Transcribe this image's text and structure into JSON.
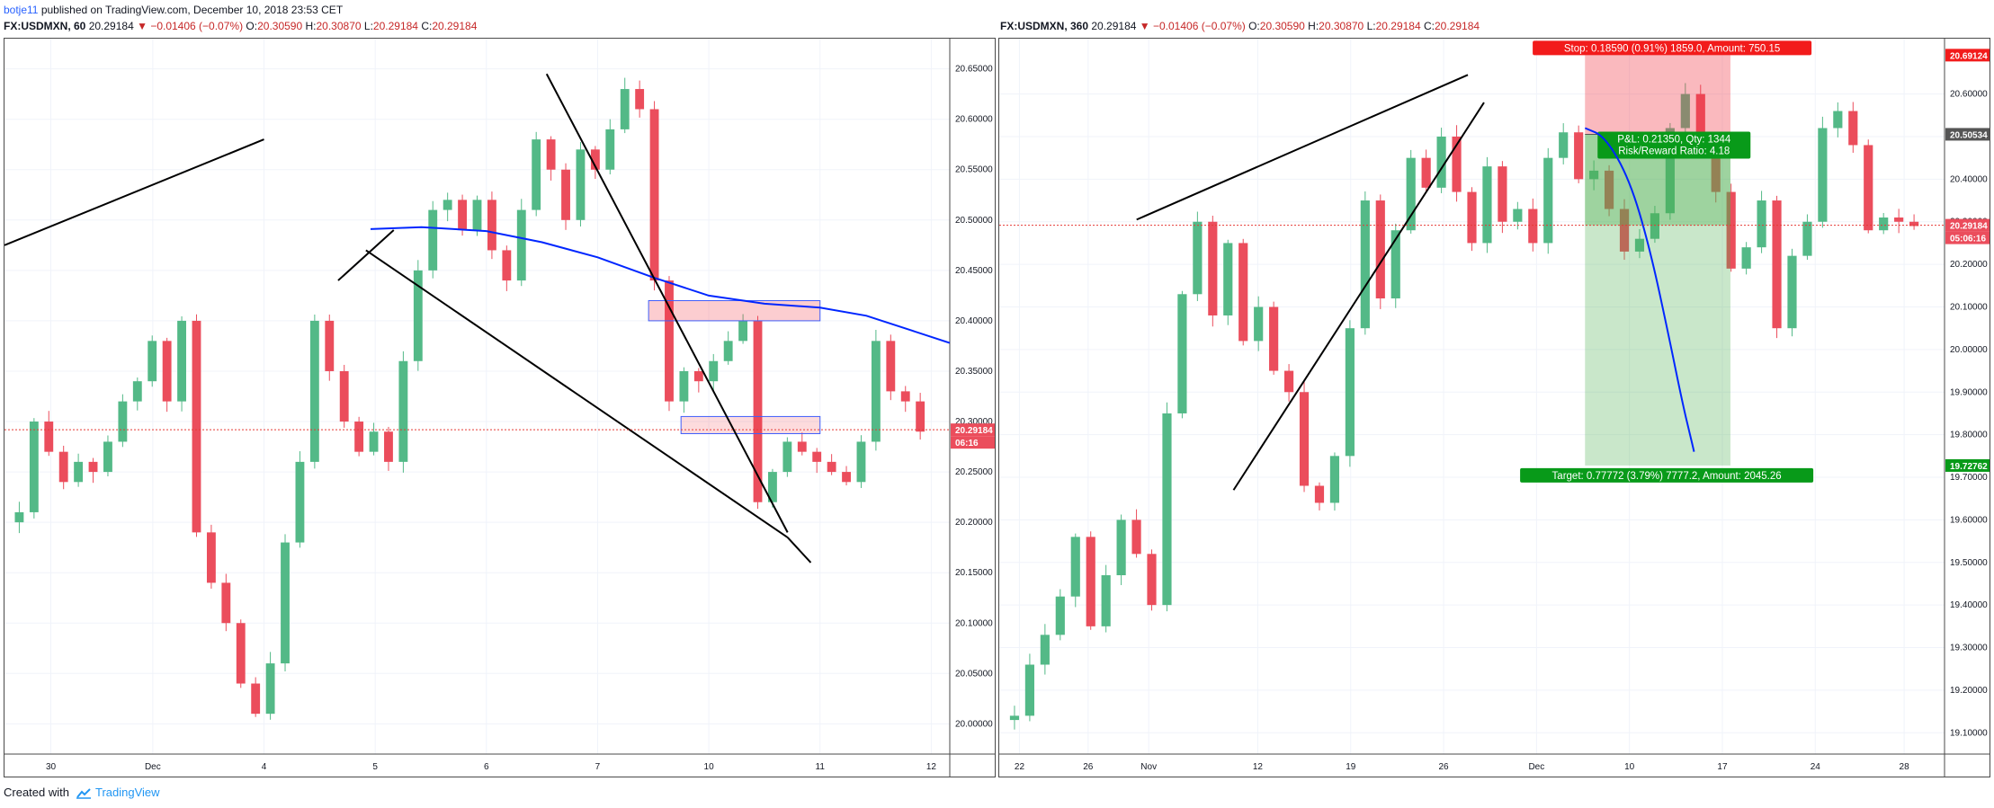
{
  "header": {
    "author": "botje11",
    "published": "published on TradingView.com, December 10, 2018 23:53 CET"
  },
  "charts_meta": [
    {
      "symbol": "FX:USDMXN, 60",
      "last": "20.29184",
      "change": "▼ −0.01406 (−0.07%)",
      "o": "20.30590",
      "h": "20.30870",
      "l": "20.29184",
      "c": "20.29184"
    },
    {
      "symbol": "FX:USDMXN, 360",
      "last": "20.29184",
      "change": "▼ −0.01406 (−0.07%)",
      "o": "20.30590",
      "h": "20.30870",
      "l": "20.29184",
      "c": "20.29184"
    }
  ],
  "labels": {
    "o": "O:",
    "h": "H:",
    "l": "L:",
    "c": "C:"
  },
  "footer": {
    "created_with": "Created with",
    "brand": "TradingView"
  },
  "colors": {
    "up": "#53b987",
    "down": "#eb4d5c",
    "ma": "#0026ff",
    "price_line": "#e53935",
    "target": "#089a19",
    "stop": "#f21b1b"
  },
  "chart_data": [
    {
      "type": "candlestick",
      "symbol": "FX:USDMXN",
      "interval": "60",
      "ylim": [
        19.97,
        20.68
      ],
      "y_ticks": [
        "20.00000",
        "20.05000",
        "20.10000",
        "20.15000",
        "20.20000",
        "20.25000",
        "20.30000",
        "20.35000",
        "20.40000",
        "20.45000",
        "20.50000",
        "20.55000",
        "20.60000",
        "20.65000"
      ],
      "x_ticks": [
        "30",
        "Dec",
        "4",
        "5",
        "6",
        "7",
        "10",
        "11",
        "12"
      ],
      "x_tick_pos": [
        0.5,
        1.6,
        2.8,
        4.0,
        5.2,
        6.4,
        7.6,
        8.8,
        10.0
      ],
      "x_range": [
        0,
        10.2
      ],
      "price_tag": "20.29184",
      "countdown": "06:16",
      "closes": [
        20.21,
        20.3,
        20.27,
        20.24,
        20.26,
        20.25,
        20.28,
        20.32,
        20.34,
        20.38,
        20.32,
        20.4,
        20.19,
        20.14,
        20.1,
        20.04,
        20.01,
        20.06,
        20.18,
        20.26,
        20.4,
        20.35,
        20.3,
        20.27,
        20.29,
        20.26,
        20.36,
        20.45,
        20.51,
        20.52,
        20.49,
        20.52,
        20.47,
        20.44,
        20.51,
        20.58,
        20.55,
        20.5,
        20.57,
        20.55,
        20.59,
        20.63,
        20.61,
        20.44,
        20.32,
        20.35,
        20.34,
        20.36,
        20.38,
        20.4,
        20.22,
        20.25,
        20.28,
        20.27,
        20.26,
        20.25,
        20.24,
        20.28,
        20.38,
        20.33,
        20.32,
        20.29
      ],
      "moving_average": [
        [
          3.95,
          20.491
        ],
        [
          4.5,
          20.493
        ],
        [
          5.2,
          20.489
        ],
        [
          5.8,
          20.478
        ],
        [
          6.4,
          20.463
        ],
        [
          7.0,
          20.443
        ],
        [
          7.6,
          20.425
        ],
        [
          8.2,
          20.417
        ],
        [
          8.8,
          20.413
        ],
        [
          9.3,
          20.405
        ],
        [
          9.8,
          20.39
        ],
        [
          10.2,
          20.378
        ]
      ],
      "zones": [
        {
          "x": [
            6.95,
            8.8
          ],
          "y": [
            20.4,
            20.42
          ],
          "color": "red"
        },
        {
          "x": [
            7.3,
            8.8
          ],
          "y": [
            20.288,
            20.305
          ],
          "color": "blue"
        }
      ],
      "trendlines": [
        [
          [
            0,
            20.475
          ],
          [
            2.8,
            20.58
          ]
        ],
        [
          [
            3.6,
            20.44
          ],
          [
            4.2,
            20.49
          ]
        ],
        [
          [
            3.9,
            20.47
          ],
          [
            8.45,
            20.185
          ]
        ],
        [
          [
            8.45,
            20.185
          ],
          [
            8.7,
            20.16
          ]
        ],
        [
          [
            5.85,
            20.645
          ],
          [
            8.45,
            20.19
          ]
        ]
      ]
    },
    {
      "type": "candlestick",
      "symbol": "FX:USDMXN",
      "interval": "360",
      "ylim": [
        19.05,
        20.73
      ],
      "y_ticks": [
        "19.10000",
        "19.20000",
        "19.30000",
        "19.40000",
        "19.50000",
        "19.60000",
        "19.70000",
        "19.80000",
        "19.90000",
        "20.00000",
        "20.10000",
        "20.20000",
        "20.30000",
        "20.40000",
        "20.50000",
        "20.60000"
      ],
      "x_ticks": [
        "22",
        "26",
        "Nov",
        "12",
        "19",
        "26",
        "Dec",
        "10",
        "17",
        "24",
        "28"
      ],
      "x_tick_pos": [
        0.25,
        1.1,
        1.85,
        3.2,
        4.35,
        5.5,
        6.65,
        7.8,
        8.95,
        10.1,
        11.2
      ],
      "x_range": [
        0,
        11.7
      ],
      "price_tags": [
        "20.69124",
        "20.50534",
        "20.29184",
        "19.72762"
      ],
      "countdown": "05:06:16",
      "closes": [
        19.14,
        19.26,
        19.33,
        19.42,
        19.56,
        19.35,
        19.47,
        19.6,
        19.52,
        19.4,
        19.85,
        20.13,
        20.3,
        20.08,
        20.25,
        20.02,
        20.1,
        19.95,
        19.9,
        19.68,
        19.64,
        19.75,
        20.05,
        20.35,
        20.12,
        20.28,
        20.45,
        20.38,
        20.5,
        20.37,
        20.25,
        20.43,
        20.3,
        20.33,
        20.25,
        20.45,
        20.51,
        20.4,
        20.42,
        20.33,
        20.23,
        20.26,
        20.32,
        20.52,
        20.6,
        20.48,
        20.37,
        20.19,
        20.24,
        20.35,
        20.05,
        20.22,
        20.3,
        20.52,
        20.56,
        20.48,
        20.28,
        20.31,
        20.3,
        20.29
      ],
      "projection": [
        [
          7.25,
          20.52
        ],
        [
          7.5,
          20.5
        ],
        [
          7.8,
          20.4
        ],
        [
          8.05,
          20.24
        ],
        [
          8.3,
          20.02
        ],
        [
          8.45,
          19.88
        ],
        [
          8.55,
          19.8
        ],
        [
          8.6,
          19.76
        ]
      ],
      "trendlines": [
        [
          [
            1.7,
            20.305
          ],
          [
            5.8,
            20.645
          ]
        ],
        [
          [
            2.9,
            19.67
          ],
          [
            6.0,
            20.58
          ]
        ]
      ],
      "position": {
        "side": "short",
        "entry": 20.50534,
        "stop": 20.69124,
        "target": 19.72762,
        "x": [
          7.25,
          9.05
        ],
        "stop_label": "Stop: 0.18590 (0.91%) 1859.0, Amount: 750.15",
        "pnl_label": "P&L: 0.21350, Qty: 1344",
        "rr_label": "Risk/Reward Ratio: 4.18",
        "target_label": "Target: 0.77772 (3.79%) 7777.2, Amount: 2045.26"
      }
    }
  ]
}
